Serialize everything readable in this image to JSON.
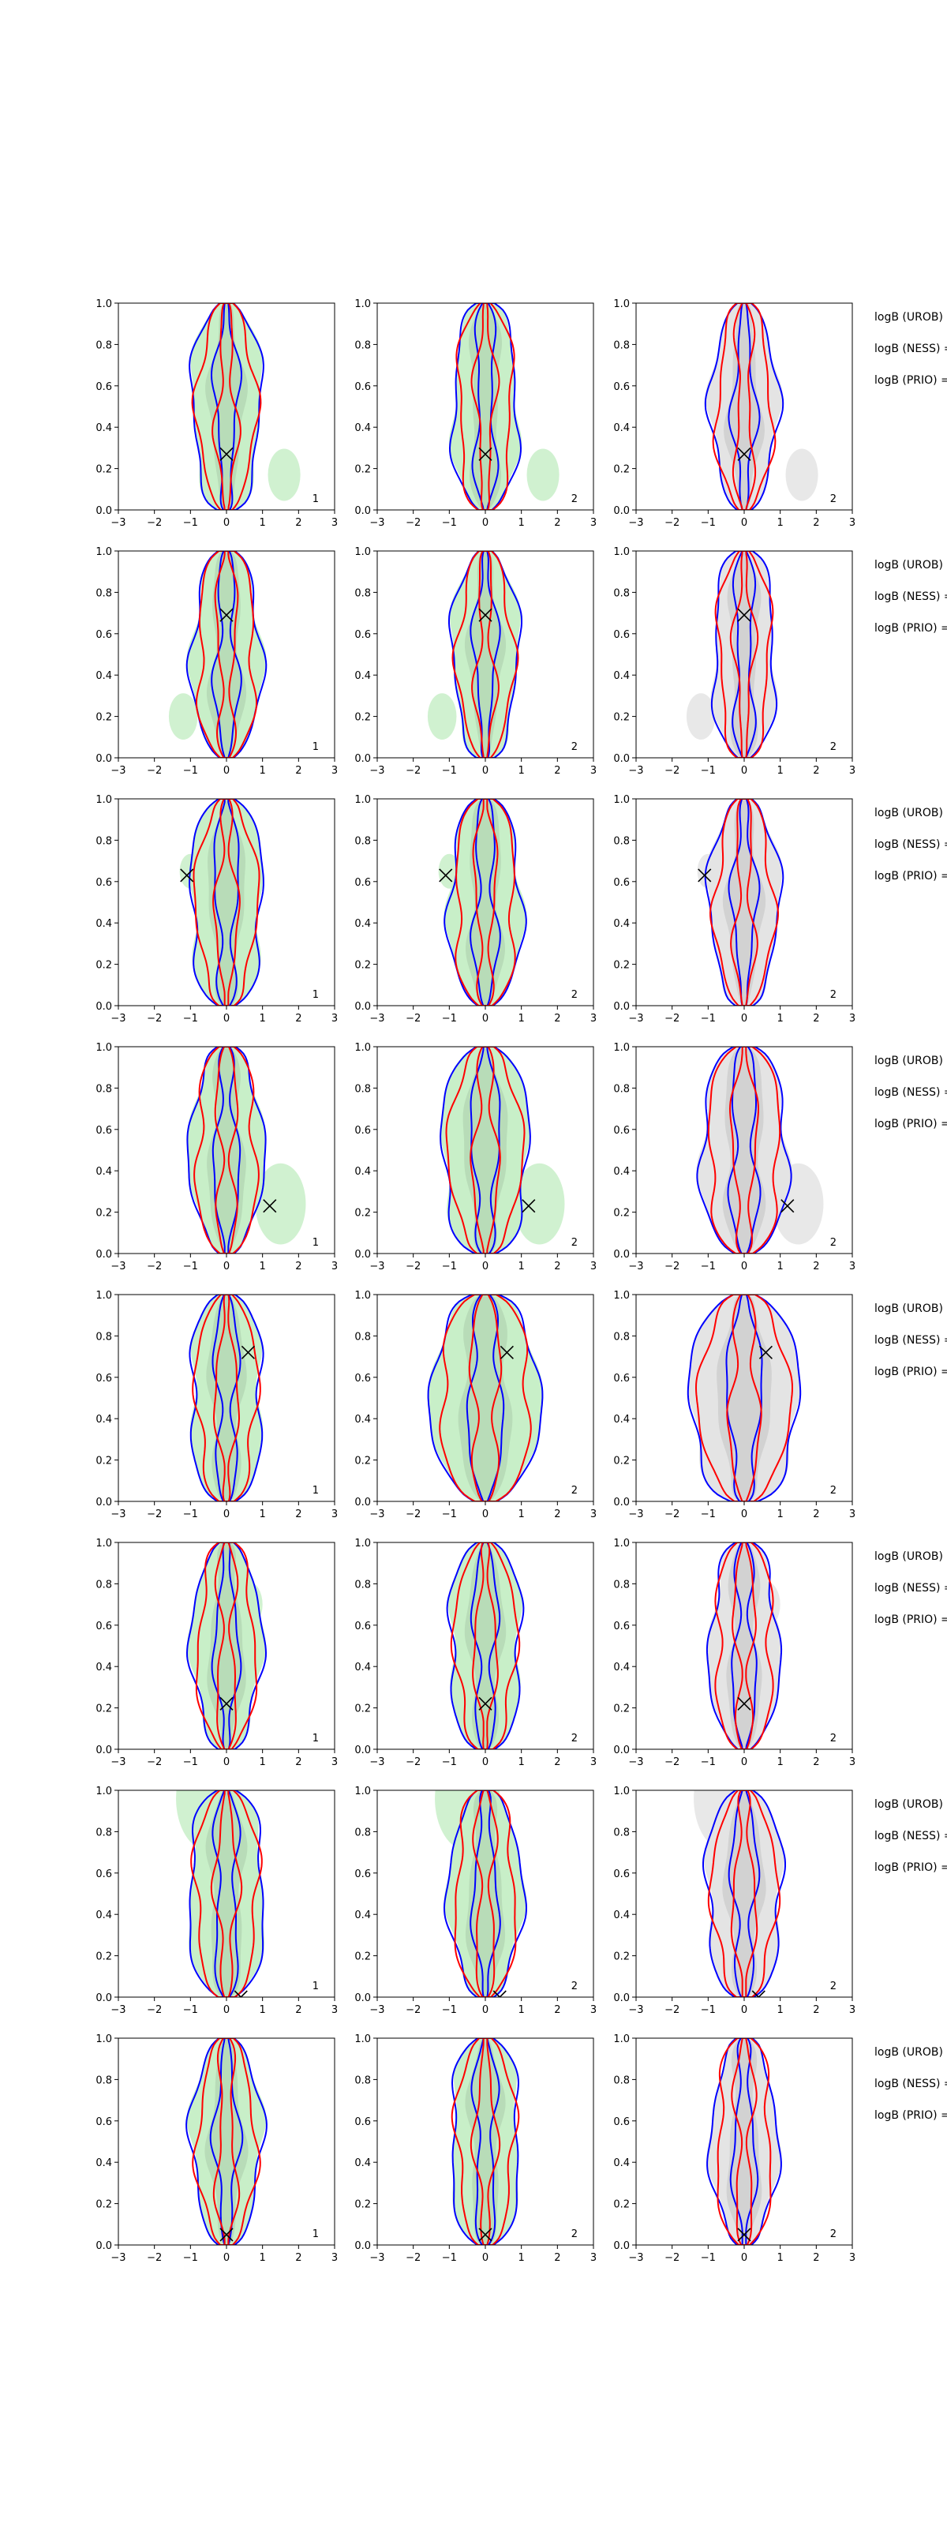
{
  "figure": {
    "legend_labels": [
      "logB (UROB) =",
      "logB (NESS) =",
      "logB (PRIO) ="
    ]
  },
  "colors": {
    "band_green": "#c8efc8",
    "band_grey": "#e4e4e4",
    "curve_blue": "#0000ff",
    "curve_red": "#ff0000",
    "marker": "#000000",
    "axes": "#000000"
  },
  "chart_data": {
    "type": "contour",
    "grid": {
      "rows": 8,
      "cols": 3
    },
    "xlim": [
      -3,
      3
    ],
    "ylim": [
      0,
      1
    ],
    "xticks": [
      -3,
      -2,
      -1,
      0,
      1,
      2,
      3
    ],
    "yticks": [
      0.0,
      0.2,
      0.4,
      0.6,
      0.8,
      1.0
    ],
    "xtick_labels": [
      "−3",
      "−2",
      "−1",
      "0",
      "1",
      "2",
      "3"
    ],
    "ytick_labels": [
      "0.0",
      "0.2",
      "0.4",
      "0.6",
      "0.8",
      "1.0"
    ],
    "column_labels": [
      "1",
      "2",
      "2"
    ],
    "column_fill": [
      "band_green",
      "band_green",
      "band_grey"
    ],
    "rows": [
      {
        "marker": [
          0.0,
          0.27
        ],
        "spread": [
          0.95,
          0.9,
          0.9
        ],
        "blob": {
          "x": 1.6,
          "y": 0.17,
          "r": 0.45
        }
      },
      {
        "marker": [
          0.0,
          0.69
        ],
        "spread": [
          0.95,
          0.9,
          0.85
        ],
        "blob": {
          "x": -1.2,
          "y": 0.2,
          "r": 0.4
        }
      },
      {
        "marker": [
          -1.1,
          0.63
        ],
        "spread": [
          1.0,
          1.0,
          0.95
        ],
        "blob": {
          "x": -1.0,
          "y": 0.65,
          "r": 0.3
        }
      },
      {
        "marker": [
          1.2,
          0.23
        ],
        "spread": [
          1.0,
          1.2,
          1.2
        ],
        "blob": {
          "x": 1.5,
          "y": 0.24,
          "r": 0.7
        }
      },
      {
        "marker": [
          0.6,
          0.72
        ],
        "spread": [
          1.0,
          1.5,
          1.5
        ],
        "blob": {
          "x": 0.0,
          "y": 0.85,
          "r": 0.6
        }
      },
      {
        "marker": [
          0.0,
          0.22
        ],
        "spread": [
          0.95,
          1.0,
          0.95
        ],
        "blob": {
          "x": 0.6,
          "y": 0.7,
          "r": 0.4
        }
      },
      {
        "marker": [
          0.4,
          0.0
        ],
        "spread": [
          1.05,
          1.0,
          1.05
        ],
        "blob": {
          "x": -0.5,
          "y": 0.96,
          "r": 0.9
        }
      },
      {
        "marker": [
          0.0,
          0.05
        ],
        "spread": [
          0.95,
          0.95,
          0.9
        ],
        "blob": {
          "x": 0.0,
          "y": 0.9,
          "r": 0.3
        }
      }
    ]
  }
}
